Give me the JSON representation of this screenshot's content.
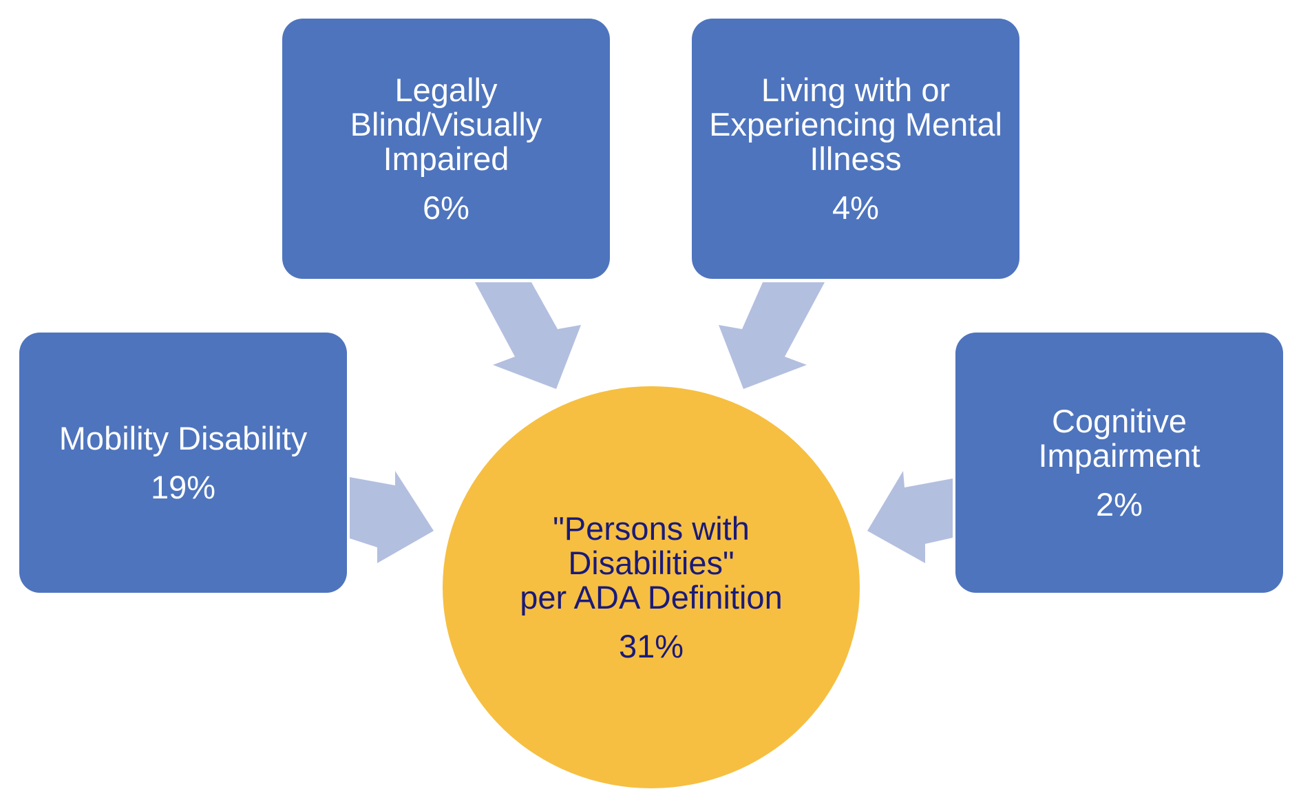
{
  "center": {
    "label": "\"Persons with\nDisabilities\"\nper ADA Definition",
    "value": "31%",
    "fill": "#f6bf41",
    "text_color": "#1a1a7a"
  },
  "categories": [
    {
      "id": "legally-blind",
      "label": "Legally\nBlind/Visually\nImpaired",
      "value": "6%"
    },
    {
      "id": "mental-illness",
      "label": "Living with or\nExperiencing Mental\nIllness",
      "value": "4%"
    },
    {
      "id": "mobility",
      "label": "Mobility Disability",
      "value": "19%"
    },
    {
      "id": "cognitive",
      "label": "Cognitive\nImpairment",
      "value": "2%"
    }
  ],
  "colors": {
    "box_fill": "#4e74bd",
    "box_text": "#ffffff",
    "arrow_fill": "#b3bfdf",
    "background": "#ffffff"
  }
}
